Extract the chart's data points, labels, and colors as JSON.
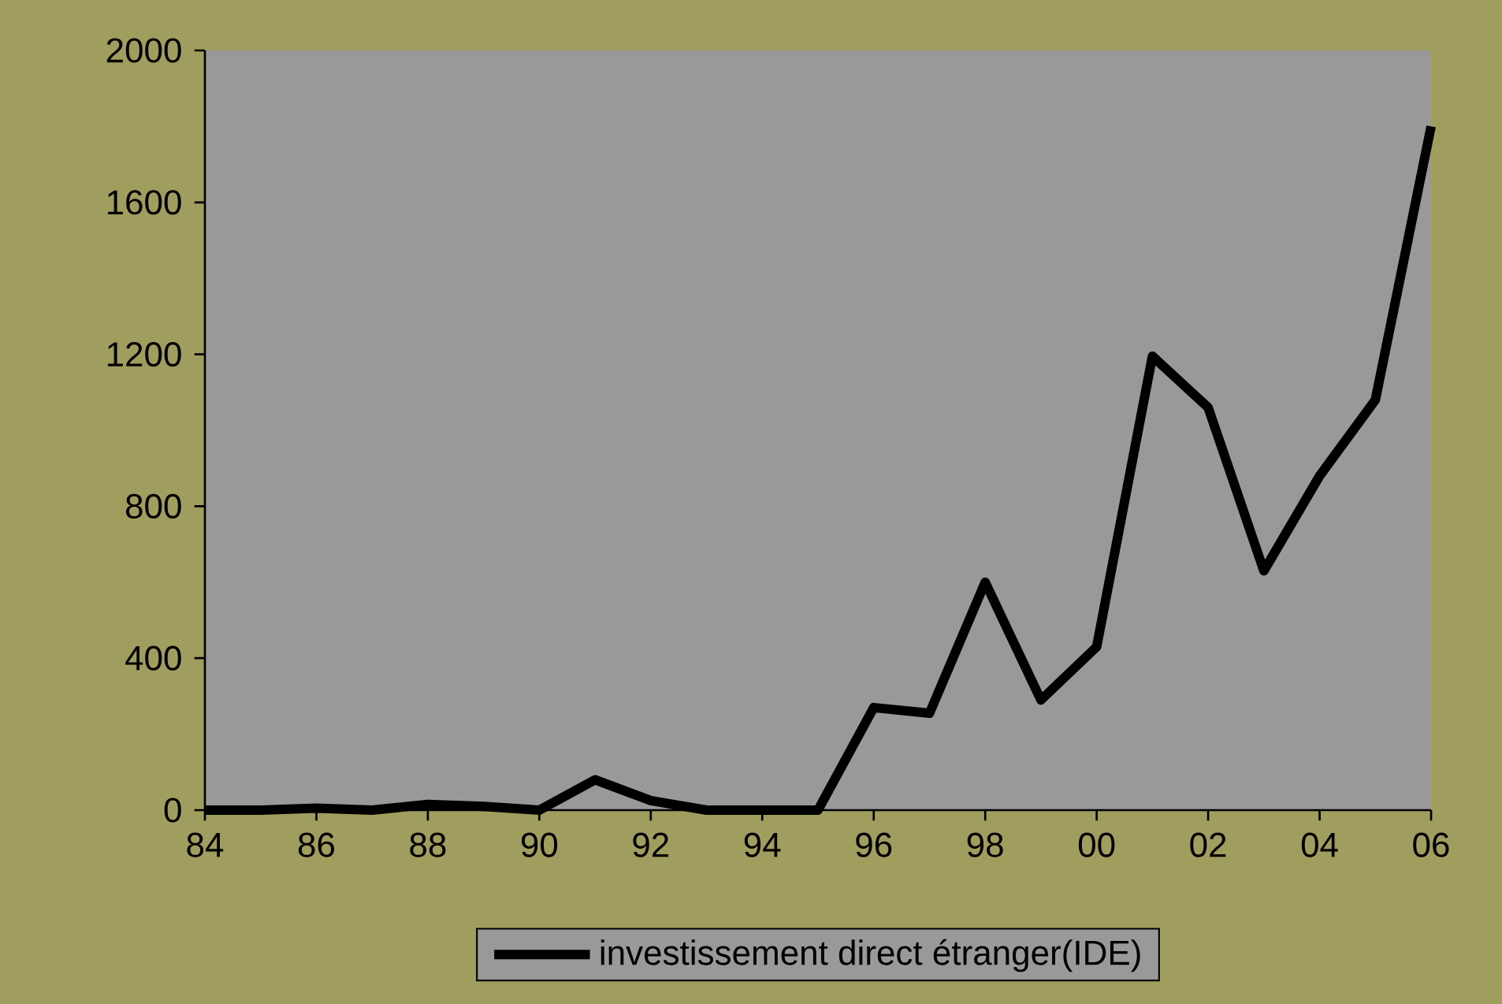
{
  "chart_data": {
    "type": "line",
    "x": [
      1984,
      1985,
      1986,
      1987,
      1988,
      1989,
      1990,
      1991,
      1992,
      1993,
      1994,
      1995,
      1996,
      1997,
      1998,
      1999,
      2000,
      2001,
      2002,
      2003,
      2004,
      2005,
      2006
    ],
    "series": [
      {
        "name": "investissement direct étranger(IDE)",
        "color": "#000000",
        "values": [
          0,
          0,
          5,
          0,
          15,
          10,
          0,
          80,
          25,
          0,
          0,
          0,
          270,
          255,
          600,
          290,
          430,
          1195,
          1060,
          630,
          880,
          1080,
          1800
        ]
      }
    ],
    "xlim": [
      1984,
      2006
    ],
    "xticks": [
      {
        "value": 1984,
        "label": "84"
      },
      {
        "value": 1986,
        "label": "86"
      },
      {
        "value": 1988,
        "label": "88"
      },
      {
        "value": 1990,
        "label": "90"
      },
      {
        "value": 1992,
        "label": "92"
      },
      {
        "value": 1994,
        "label": "94"
      },
      {
        "value": 1996,
        "label": "96"
      },
      {
        "value": 1998,
        "label": "98"
      },
      {
        "value": 2000,
        "label": "00"
      },
      {
        "value": 2002,
        "label": "02"
      },
      {
        "value": 2004,
        "label": "04"
      },
      {
        "value": 2006,
        "label": "06"
      }
    ],
    "ylim": [
      0,
      2000
    ],
    "yticks": [
      0,
      400,
      800,
      1200,
      1600,
      2000
    ],
    "grid": false,
    "legend": "bottom",
    "line_style": "solid"
  }
}
